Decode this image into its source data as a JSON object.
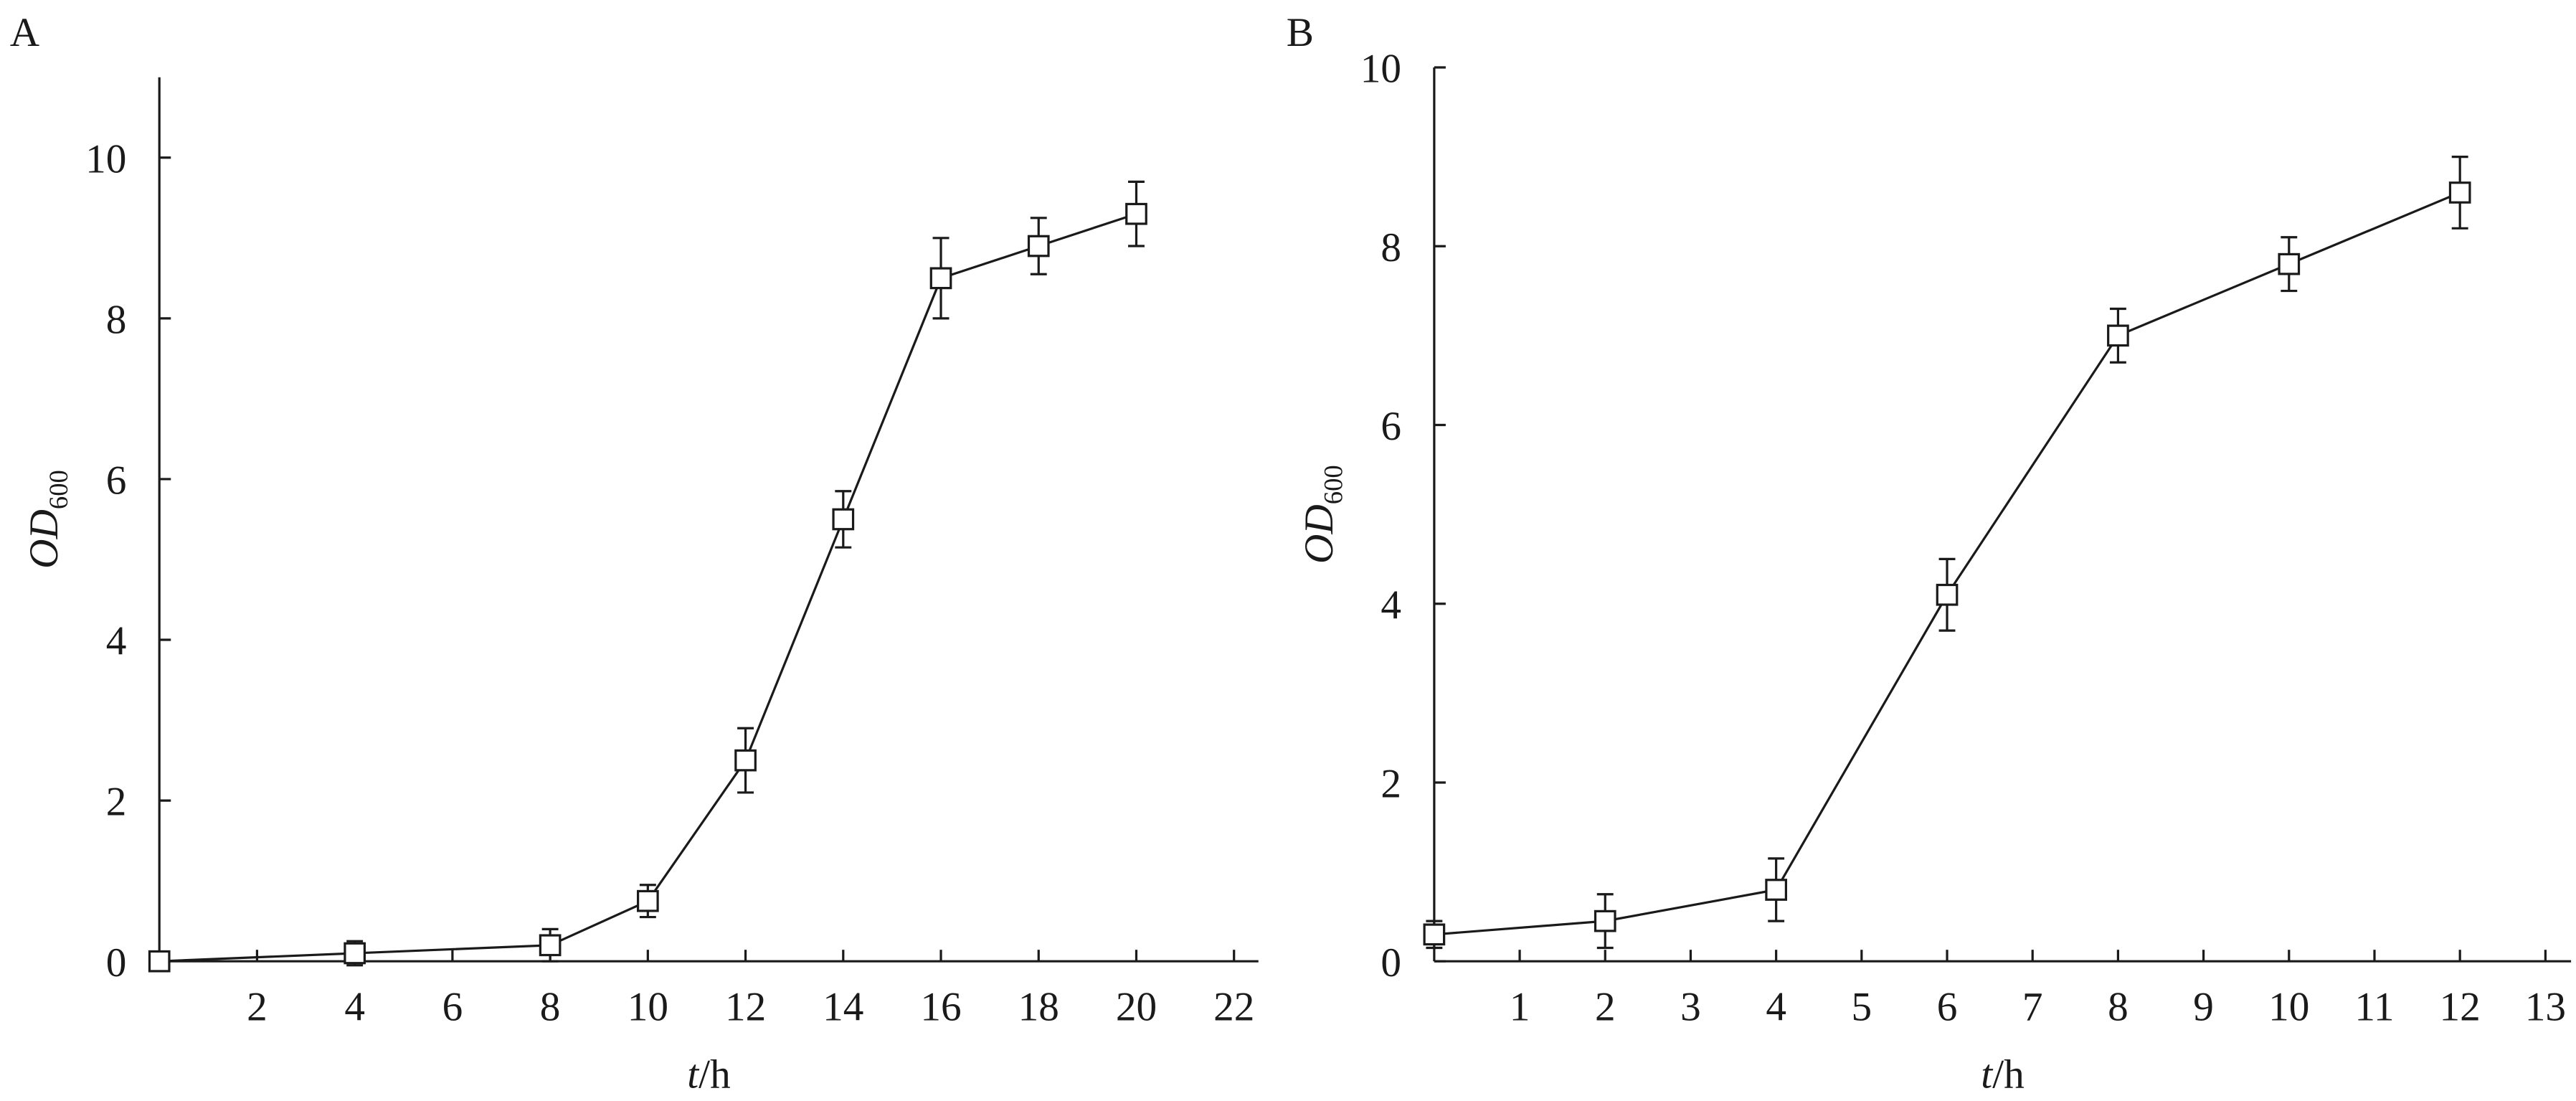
{
  "chart_data": [
    {
      "type": "line",
      "panel": "A",
      "ylabel": "OD",
      "ylabel_subscript": "600",
      "xlabel_var": "t",
      "xlabel_unit": "/h",
      "x": [
        0,
        4,
        8,
        10,
        12,
        14,
        16,
        18,
        20
      ],
      "values": [
        0,
        0.1,
        0.2,
        0.75,
        2.5,
        5.5,
        8.5,
        8.9,
        9.3
      ],
      "errors": [
        0.05,
        0.15,
        0.2,
        0.2,
        0.4,
        0.35,
        0.5,
        0.35,
        0.4
      ],
      "color": "#1a1a1a",
      "xlim": [
        0,
        22.5
      ],
      "xticks": [
        2,
        4,
        6,
        8,
        10,
        12,
        14,
        16,
        18,
        20,
        22
      ],
      "ylim": [
        0,
        11
      ],
      "yticks": [
        0,
        2,
        4,
        6,
        8,
        10
      ]
    },
    {
      "type": "line",
      "panel": "B",
      "ylabel": "OD",
      "ylabel_subscript": "600",
      "xlabel_var": "t",
      "xlabel_unit": "/h",
      "x": [
        0,
        2,
        4,
        6,
        8,
        10,
        12
      ],
      "values": [
        0.3,
        0.45,
        0.8,
        4.1,
        7.0,
        7.8,
        8.6
      ],
      "errors": [
        0.15,
        0.3,
        0.35,
        0.4,
        0.3,
        0.3,
        0.4
      ],
      "color": "#1a1a1a",
      "xlim": [
        0,
        13.3
      ],
      "xticks": [
        1,
        2,
        3,
        4,
        5,
        6,
        7,
        8,
        9,
        10,
        11,
        12,
        13
      ],
      "ylim": [
        0,
        10
      ],
      "yticks": [
        0,
        2,
        4,
        6,
        8,
        10
      ]
    }
  ]
}
